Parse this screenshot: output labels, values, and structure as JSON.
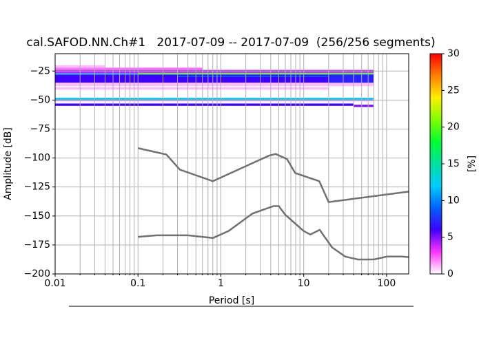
{
  "chart_data": {
    "type": "heatmap",
    "title": "cal.SAFOD.NN.Ch#1   2017-07-09 -- 2017-07-09  (256/256 segments)",
    "x_label": "Period [s]",
    "y_label": "Amplitude [dB]",
    "colorbar_label": "[%]",
    "xscale": "log",
    "grid": true,
    "xlim": [
      0.01,
      185
    ],
    "ylim": [
      -200,
      -10
    ],
    "xticks": [
      0.01,
      0.1,
      1,
      10,
      100
    ],
    "xminorticks": [
      0.02,
      0.03,
      0.04,
      0.05,
      0.06,
      0.07,
      0.08,
      0.09,
      0.2,
      0.3,
      0.4,
      0.5,
      0.6,
      0.7,
      0.8,
      0.9,
      2,
      3,
      4,
      5,
      6,
      7,
      8,
      9,
      20,
      30,
      40,
      50,
      60,
      70,
      80,
      90
    ],
    "yticks": [
      {
        "value": -200,
        "label": "−200"
      },
      {
        "value": -175,
        "label": "−175"
      },
      {
        "value": -150,
        "label": "−150"
      },
      {
        "value": -125,
        "label": "−125"
      },
      {
        "value": -100,
        "label": "−100"
      },
      {
        "value": -75,
        "label": "−75"
      },
      {
        "value": -50,
        "label": "−50"
      },
      {
        "value": -25,
        "label": "−25"
      }
    ],
    "clim": [
      0,
      30
    ],
    "cticks": [
      0,
      5,
      10,
      15,
      20,
      25,
      30
    ],
    "colormap": [
      "#ffffff",
      "#ff33ff",
      "#4000ff",
      "#0060ff",
      "#00ccff",
      "#00e0a0",
      "#00ff30",
      "#80ff00",
      "#ffee00",
      "#ff8000",
      "#ff0000"
    ],
    "cells": [
      {
        "x": [
          0.01,
          0.04
        ],
        "y": [
          -22,
          -20
        ],
        "value": 1
      },
      {
        "x": [
          0.01,
          0.6
        ],
        "y": [
          -24,
          -22
        ],
        "value": 2
      },
      {
        "x": [
          0.01,
          70
        ],
        "y": [
          -27,
          -24
        ],
        "value": 4
      },
      {
        "x": [
          0.01,
          20
        ],
        "y": [
          -35,
          -28
        ],
        "value": 6
      },
      {
        "x": [
          0.01,
          70
        ],
        "y": [
          -28,
          -27
        ],
        "value": 13
      },
      {
        "x": [
          0.1,
          70
        ],
        "y": [
          -27.5,
          -26.5
        ],
        "value": 21
      },
      {
        "x": [
          0.3,
          20
        ],
        "y": [
          -30,
          -29
        ],
        "value": 9
      },
      {
        "x": [
          20,
          70
        ],
        "y": [
          -37,
          -28
        ],
        "value": 7
      },
      {
        "x": [
          0.01,
          70
        ],
        "y": [
          -38,
          -35
        ],
        "value": 1
      },
      {
        "x": [
          0.01,
          20
        ],
        "y": [
          -41,
          -39
        ],
        "value": 1
      },
      {
        "x": [
          0.01,
          70
        ],
        "y": [
          -50,
          -48
        ],
        "value": 12
      },
      {
        "x": [
          0.01,
          70
        ],
        "y": [
          -51,
          -50
        ],
        "value": 2
      },
      {
        "x": [
          0.01,
          40
        ],
        "y": [
          -55,
          -53
        ],
        "value": 6
      },
      {
        "x": [
          40,
          70
        ],
        "y": [
          -56,
          -54
        ],
        "value": 5
      }
    ],
    "curves": [
      {
        "color": "#707070",
        "x": [
          0.1,
          0.22,
          0.32,
          0.8,
          3.8,
          4.6,
          6.3,
          7.9,
          15.4,
          20,
          185
        ],
        "values": [
          -91.5,
          -97,
          -110,
          -120,
          -98,
          -96.5,
          -101,
          -113,
          -120,
          -138,
          -129
        ]
      },
      {
        "color": "#707070",
        "x": [
          0.1,
          0.17,
          0.4,
          0.8,
          1.24,
          2.4,
          4.3,
          5,
          6,
          10,
          12,
          15.6,
          21.9,
          31.6,
          45,
          70,
          101,
          154,
          185
        ],
        "values": [
          -168,
          -166.7,
          -166.7,
          -169,
          -163,
          -148,
          -141.5,
          -141.5,
          -149,
          -163,
          -166,
          -162,
          -177,
          -185,
          -187.5,
          -187.5,
          -185,
          -185,
          -185.5
        ]
      }
    ]
  }
}
